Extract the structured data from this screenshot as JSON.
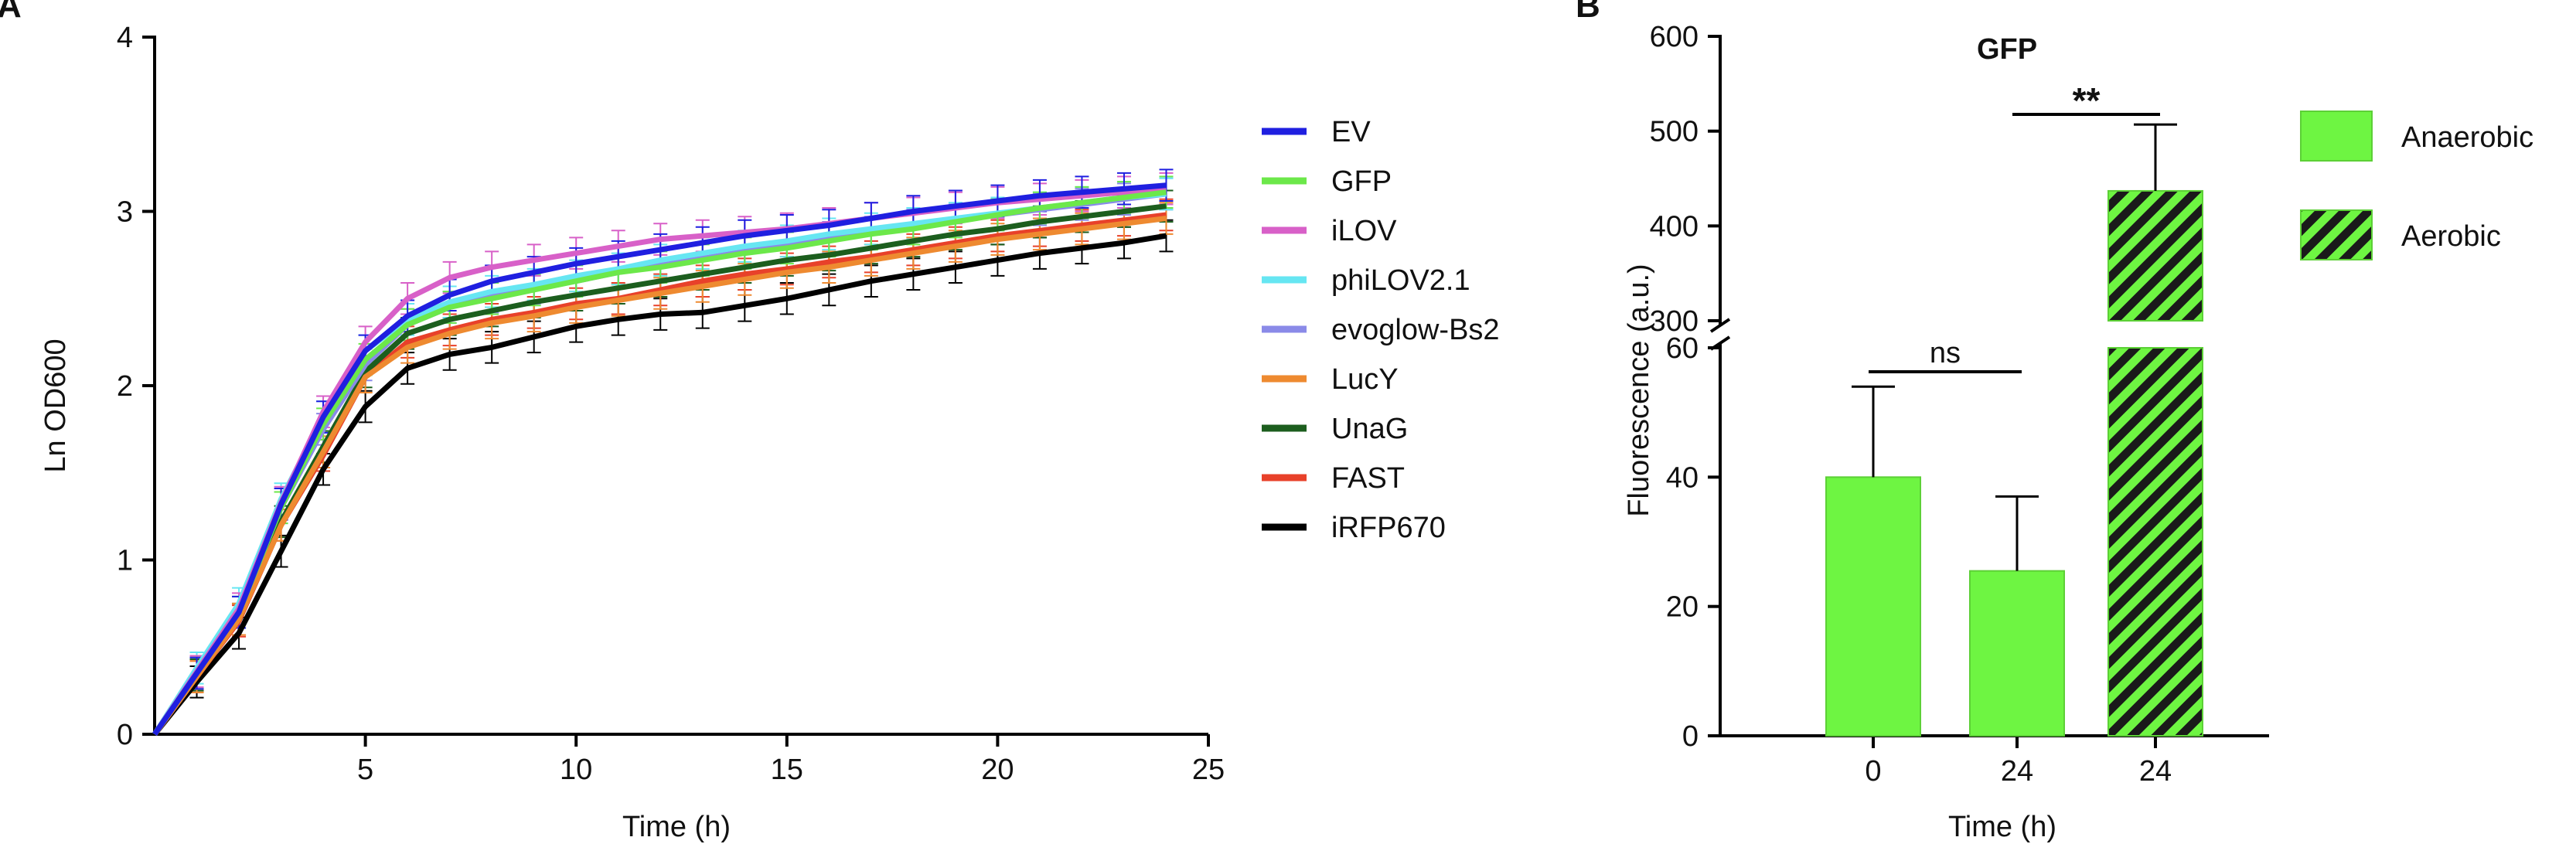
{
  "panels": {
    "a_label": "A",
    "b_label": "B"
  },
  "chart_data": [
    {
      "type": "line",
      "panel": "A",
      "title": "",
      "xlabel": "Time (h)",
      "ylabel": "Ln OD600",
      "xlim": [
        0,
        25
      ],
      "ylim": [
        0,
        4
      ],
      "xticks": [
        5,
        10,
        15,
        20,
        25
      ],
      "yticks": [
        0,
        1,
        2,
        3,
        4
      ],
      "grid": false,
      "legend_position": "right",
      "x": [
        0,
        1,
        2,
        3,
        4,
        5,
        6,
        7,
        8,
        9,
        10,
        11,
        12,
        13,
        14,
        15,
        16,
        17,
        18,
        19,
        20,
        21,
        22,
        23,
        24
      ],
      "series": [
        {
          "name": "iRFP670",
          "color": "#000000",
          "values": [
            0,
            0.3,
            0.58,
            1.05,
            1.52,
            1.88,
            2.1,
            2.18,
            2.22,
            2.28,
            2.34,
            2.38,
            2.41,
            2.42,
            2.46,
            2.5,
            2.55,
            2.6,
            2.64,
            2.68,
            2.72,
            2.76,
            2.79,
            2.82,
            2.86
          ]
        },
        {
          "name": "FAST",
          "color": "#e8412a",
          "values": [
            0,
            0.33,
            0.65,
            1.2,
            1.6,
            2.05,
            2.25,
            2.32,
            2.38,
            2.42,
            2.47,
            2.5,
            2.55,
            2.6,
            2.64,
            2.67,
            2.71,
            2.74,
            2.78,
            2.82,
            2.86,
            2.89,
            2.92,
            2.95,
            2.98
          ]
        },
        {
          "name": "UnaG",
          "color": "#1c5e1e",
          "values": [
            0,
            0.34,
            0.66,
            1.22,
            1.65,
            2.08,
            2.3,
            2.38,
            2.43,
            2.48,
            2.52,
            2.56,
            2.6,
            2.64,
            2.68,
            2.72,
            2.75,
            2.79,
            2.83,
            2.87,
            2.9,
            2.94,
            2.97,
            3.0,
            3.03
          ]
        },
        {
          "name": "LucY",
          "color": "#ee8a30",
          "values": [
            0,
            0.33,
            0.66,
            1.2,
            1.62,
            2.05,
            2.22,
            2.3,
            2.36,
            2.4,
            2.45,
            2.49,
            2.53,
            2.57,
            2.61,
            2.65,
            2.68,
            2.72,
            2.76,
            2.8,
            2.84,
            2.87,
            2.9,
            2.93,
            2.96
          ]
        },
        {
          "name": "evoglow-Bs2",
          "color": "#8a8ae8",
          "values": [
            0,
            0.35,
            0.7,
            1.3,
            1.75,
            2.12,
            2.35,
            2.45,
            2.51,
            2.56,
            2.6,
            2.65,
            2.69,
            2.73,
            2.77,
            2.81,
            2.85,
            2.88,
            2.92,
            2.95,
            2.98,
            3.01,
            3.04,
            3.07,
            3.1
          ]
        },
        {
          "name": "phiLOV2.1",
          "color": "#66e6f2",
          "values": [
            0,
            0.38,
            0.75,
            1.35,
            1.82,
            2.2,
            2.38,
            2.48,
            2.54,
            2.58,
            2.63,
            2.67,
            2.72,
            2.76,
            2.8,
            2.83,
            2.87,
            2.9,
            2.93,
            2.96,
            2.99,
            3.02,
            3.05,
            3.08,
            3.1
          ]
        },
        {
          "name": "iLOV",
          "color": "#d860c8",
          "values": [
            0,
            0.36,
            0.72,
            1.33,
            1.85,
            2.25,
            2.5,
            2.62,
            2.68,
            2.72,
            2.76,
            2.8,
            2.84,
            2.86,
            2.88,
            2.9,
            2.93,
            2.96,
            2.99,
            3.02,
            3.05,
            3.07,
            3.09,
            3.11,
            3.13
          ]
        },
        {
          "name": "GFP",
          "color": "#6ce84a",
          "values": [
            0,
            0.35,
            0.7,
            1.3,
            1.78,
            2.15,
            2.35,
            2.45,
            2.5,
            2.55,
            2.6,
            2.65,
            2.68,
            2.72,
            2.76,
            2.79,
            2.83,
            2.87,
            2.9,
            2.94,
            2.98,
            3.02,
            3.05,
            3.08,
            3.11
          ]
        },
        {
          "name": "EV",
          "color": "#1f1fe0",
          "values": [
            0,
            0.35,
            0.7,
            1.32,
            1.82,
            2.2,
            2.4,
            2.52,
            2.6,
            2.65,
            2.7,
            2.74,
            2.78,
            2.82,
            2.86,
            2.89,
            2.92,
            2.96,
            3.0,
            3.03,
            3.06,
            3.09,
            3.11,
            3.13,
            3.15
          ]
        }
      ],
      "legend_order": [
        "EV",
        "GFP",
        "iLOV",
        "phiLOV2.1",
        "evoglow-Bs2",
        "LucY",
        "UnaG",
        "FAST",
        "iRFP670"
      ],
      "error_bar_size": 0.09
    },
    {
      "type": "bar",
      "panel": "B",
      "title": "GFP",
      "xlabel": "Time (h)",
      "ylabel": "Fluorescence (a.u.)",
      "categories": [
        "0",
        "24",
        "24"
      ],
      "values": [
        40,
        25.5,
        437
      ],
      "errors": [
        14,
        11.5,
        70
      ],
      "condition": [
        "Anaerobic",
        "Anaerobic",
        "Aerobic"
      ],
      "y_axis_break": {
        "lower_range": [
          0,
          60
        ],
        "upper_range": [
          300,
          600
        ]
      },
      "yticks_lower": [
        0,
        20,
        40,
        60
      ],
      "yticks_upper": [
        300,
        400,
        500,
        600
      ],
      "legend": [
        {
          "name": "Anaerobic",
          "pattern": "solid",
          "color": "#6ef542"
        },
        {
          "name": "Aerobic",
          "pattern": "hatched",
          "color": "#6ef542"
        }
      ],
      "legend_position": "right",
      "annotations": [
        {
          "text": "ns",
          "between": [
            0,
            1
          ]
        },
        {
          "text": "**",
          "between": [
            1,
            2
          ]
        }
      ]
    }
  ]
}
